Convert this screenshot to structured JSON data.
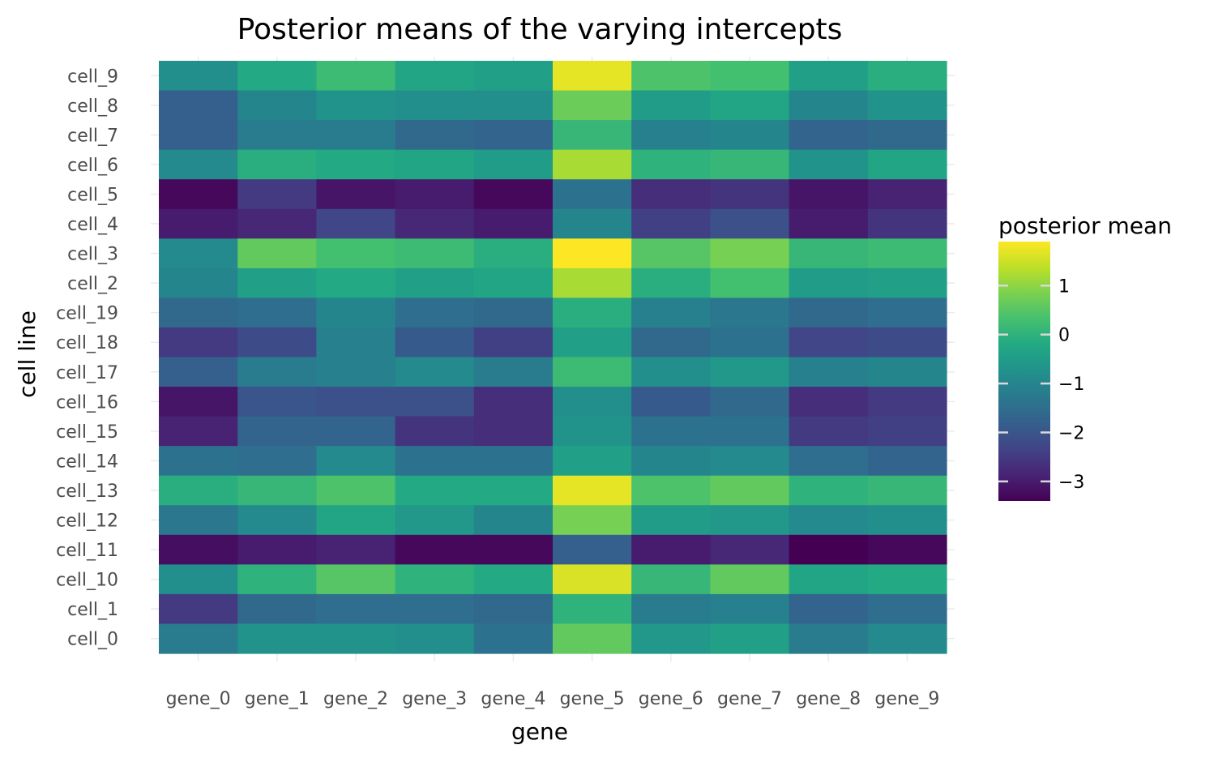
{
  "chart_data": {
    "type": "heatmap",
    "title": "Posterior means of the varying intercepts",
    "xlabel": "gene",
    "ylabel": "cell line",
    "x_categories": [
      "gene_0",
      "gene_1",
      "gene_2",
      "gene_3",
      "gene_4",
      "gene_5",
      "gene_6",
      "gene_7",
      "gene_8",
      "gene_9"
    ],
    "y_categories": [
      "cell_9",
      "cell_8",
      "cell_7",
      "cell_6",
      "cell_5",
      "cell_4",
      "cell_3",
      "cell_2",
      "cell_19",
      "cell_18",
      "cell_17",
      "cell_16",
      "cell_15",
      "cell_14",
      "cell_13",
      "cell_12",
      "cell_11",
      "cell_10",
      "cell_1",
      "cell_0"
    ],
    "values": [
      [
        -0.8,
        -0.2,
        0.2,
        -0.3,
        -0.4,
        1.7,
        0.4,
        0.3,
        -0.4,
        -0.1
      ],
      [
        -1.8,
        -1.0,
        -0.7,
        -0.8,
        -0.8,
        0.7,
        -0.5,
        -0.3,
        -1.0,
        -0.7
      ],
      [
        -1.8,
        -1.2,
        -1.2,
        -1.6,
        -1.7,
        0.1,
        -1.1,
        -1.0,
        -1.7,
        -1.6
      ],
      [
        -0.9,
        -0.1,
        -0.2,
        -0.3,
        -0.5,
        1.2,
        0.0,
        0.1,
        -0.7,
        -0.3
      ],
      [
        -3.3,
        -2.5,
        -3.1,
        -3.0,
        -3.3,
        -1.4,
        -2.7,
        -2.6,
        -3.1,
        -2.9
      ],
      [
        -3.0,
        -2.8,
        -2.3,
        -2.8,
        -3.0,
        -1.0,
        -2.4,
        -2.1,
        -3.0,
        -2.6
      ],
      [
        -0.9,
        0.6,
        0.3,
        0.2,
        -0.1,
        1.9,
        0.5,
        0.8,
        0.1,
        0.2
      ],
      [
        -1.0,
        -0.4,
        -0.2,
        -0.4,
        -0.3,
        1.2,
        -0.1,
        0.3,
        -0.5,
        -0.4
      ],
      [
        -1.6,
        -1.5,
        -1.0,
        -1.5,
        -1.6,
        -0.1,
        -1.1,
        -1.3,
        -1.6,
        -1.5
      ],
      [
        -2.5,
        -2.2,
        -1.1,
        -1.9,
        -2.4,
        -0.4,
        -1.6,
        -1.4,
        -2.3,
        -2.2
      ],
      [
        -1.8,
        -1.2,
        -1.1,
        -0.9,
        -1.2,
        0.2,
        -0.8,
        -0.6,
        -1.1,
        -1.0
      ],
      [
        -3.1,
        -2.0,
        -2.1,
        -2.1,
        -2.7,
        -0.8,
        -1.9,
        -1.6,
        -2.7,
        -2.5
      ],
      [
        -2.9,
        -1.7,
        -1.7,
        -2.6,
        -2.7,
        -0.7,
        -1.4,
        -1.4,
        -2.5,
        -2.4
      ],
      [
        -1.4,
        -1.5,
        -0.9,
        -1.4,
        -1.4,
        -0.4,
        -1.0,
        -0.9,
        -1.5,
        -1.7
      ],
      [
        -0.1,
        0.1,
        0.4,
        -0.2,
        -0.2,
        1.7,
        0.4,
        0.6,
        0.0,
        0.1
      ],
      [
        -1.3,
        -0.9,
        -0.3,
        -0.6,
        -1.0,
        0.8,
        -0.5,
        -0.6,
        -0.9,
        -0.8
      ],
      [
        -3.2,
        -3.0,
        -2.9,
        -3.3,
        -3.3,
        -1.8,
        -3.0,
        -2.8,
        -3.4,
        -3.3
      ],
      [
        -0.8,
        0.0,
        0.5,
        0.0,
        -0.2,
        1.6,
        0.1,
        0.6,
        -0.3,
        -0.2
      ],
      [
        -2.5,
        -1.6,
        -1.5,
        -1.5,
        -1.6,
        0.0,
        -1.2,
        -1.1,
        -1.7,
        -1.5
      ],
      [
        -1.2,
        -0.7,
        -0.7,
        -0.8,
        -1.4,
        0.6,
        -0.6,
        -0.4,
        -1.2,
        -0.9
      ]
    ],
    "color_scale": {
      "name": "viridis",
      "min": -3.4,
      "max": 1.9,
      "stops": [
        "#440154",
        "#482475",
        "#414487",
        "#355f8d",
        "#2a788e",
        "#21918c",
        "#22a884",
        "#44bf70",
        "#7ad151",
        "#bddf26",
        "#fde725"
      ]
    },
    "legend": {
      "title": "posterior mean",
      "ticks": [
        1,
        0,
        -1,
        -2,
        -3
      ],
      "tick_labels": [
        "1",
        "0",
        "−1",
        "−2",
        "−3"
      ],
      "position": "right"
    },
    "grid": true
  }
}
